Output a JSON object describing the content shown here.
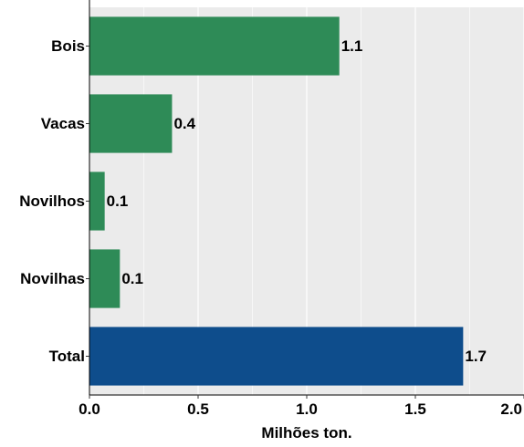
{
  "chart_data": {
    "type": "bar",
    "orientation": "horizontal",
    "categories": [
      "Bois",
      "Vacas",
      "Novilhos",
      "Novilhas",
      "Total"
    ],
    "values": [
      1.15,
      0.38,
      0.07,
      0.14,
      1.72
    ],
    "data_labels": [
      "1.1",
      "0.4",
      "0.1",
      "0.1",
      "1.7"
    ],
    "bar_colors": [
      "#2e8b57",
      "#2e8b57",
      "#2e8b57",
      "#2e8b57",
      "#0e4d8c"
    ],
    "xlabel": "Milhões ton.",
    "ylabel": "",
    "xlim": [
      0,
      2.0
    ],
    "x_ticks": [
      0.0,
      0.5,
      1.0,
      1.5,
      2.0
    ],
    "x_tick_labels": [
      "0.0",
      "0.5",
      "1.0",
      "1.5",
      "2.0"
    ],
    "grid": true,
    "panel_background": "#ebebeb",
    "grid_color": "#ffffff",
    "legend": "none"
  }
}
